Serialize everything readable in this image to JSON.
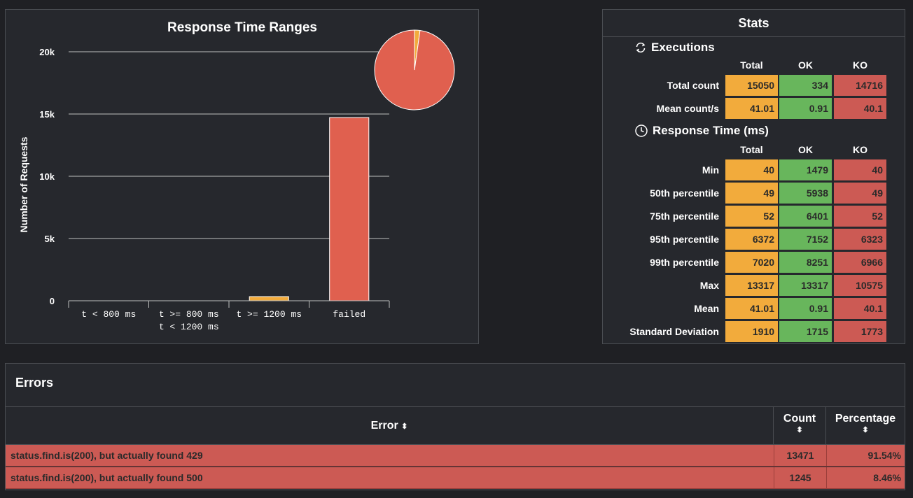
{
  "chart": {
    "title": "Response Time Ranges",
    "ylabel": "Number of Requests"
  },
  "chart_data": {
    "type": "bar",
    "title": "Response Time Ranges",
    "xlabel": "",
    "ylabel": "Number of Requests",
    "categories": [
      "t < 800 ms",
      "t >= 800 ms\nt < 1200 ms",
      "t >= 1200 ms",
      "failed"
    ],
    "category_lines": [
      [
        "t < 800 ms"
      ],
      [
        "t >= 800 ms",
        "t < 1200 ms"
      ],
      [
        "t >= 1200 ms"
      ],
      [
        "failed"
      ]
    ],
    "values": [
      0,
      0,
      334,
      14716
    ],
    "bar_colors": [
      "#f2ab3c",
      "#f2ab3c",
      "#f2ab3c",
      "#e0604f"
    ],
    "ylim": [
      0,
      20000
    ],
    "yticks": [
      0,
      5000,
      10000,
      15000,
      20000
    ],
    "ytick_labels": [
      "0",
      "5k",
      "10k",
      "15k",
      "20k"
    ],
    "grid": true,
    "pie": {
      "slices": [
        {
          "value": 334,
          "color": "#f2ab3c"
        },
        {
          "value": 14716,
          "color": "#e0604f"
        }
      ]
    }
  },
  "stats": {
    "title": "Stats",
    "executions_title": "Executions",
    "response_title": "Response Time (ms)",
    "columns": [
      "Total",
      "OK",
      "KO"
    ],
    "execution_rows": [
      {
        "label": "Total count",
        "total": "15050",
        "ok": "334",
        "ko": "14716"
      },
      {
        "label": "Mean count/s",
        "total": "41.01",
        "ok": "0.91",
        "ko": "40.1"
      }
    ],
    "response_rows": [
      {
        "label": "Min",
        "total": "40",
        "ok": "1479",
        "ko": "40"
      },
      {
        "label": "50th percentile",
        "total": "49",
        "ok": "5938",
        "ko": "49"
      },
      {
        "label": "75th percentile",
        "total": "52",
        "ok": "6401",
        "ko": "52"
      },
      {
        "label": "95th percentile",
        "total": "6372",
        "ok": "7152",
        "ko": "6323"
      },
      {
        "label": "99th percentile",
        "total": "7020",
        "ok": "8251",
        "ko": "6966"
      },
      {
        "label": "Max",
        "total": "13317",
        "ok": "13317",
        "ko": "10575"
      },
      {
        "label": "Mean",
        "total": "41.01",
        "ok": "0.91",
        "ko": "40.1"
      },
      {
        "label": "Standard Deviation",
        "total": "1910",
        "ok": "1715",
        "ko": "1773"
      }
    ]
  },
  "errors": {
    "title": "Errors",
    "col_error": "Error",
    "col_count": "Count",
    "col_percentage": "Percentage",
    "sort_icon": "⬍",
    "rows": [
      {
        "message": "status.find.is(200), but actually found 429",
        "count": "13471",
        "percentage": "91.54%"
      },
      {
        "message": "status.find.is(200), but actually found 500",
        "count": "1245",
        "percentage": "8.46%"
      }
    ]
  },
  "colors": {
    "total": "#f2ab3c",
    "ok": "#68b65c",
    "ko": "#cc5a54"
  }
}
